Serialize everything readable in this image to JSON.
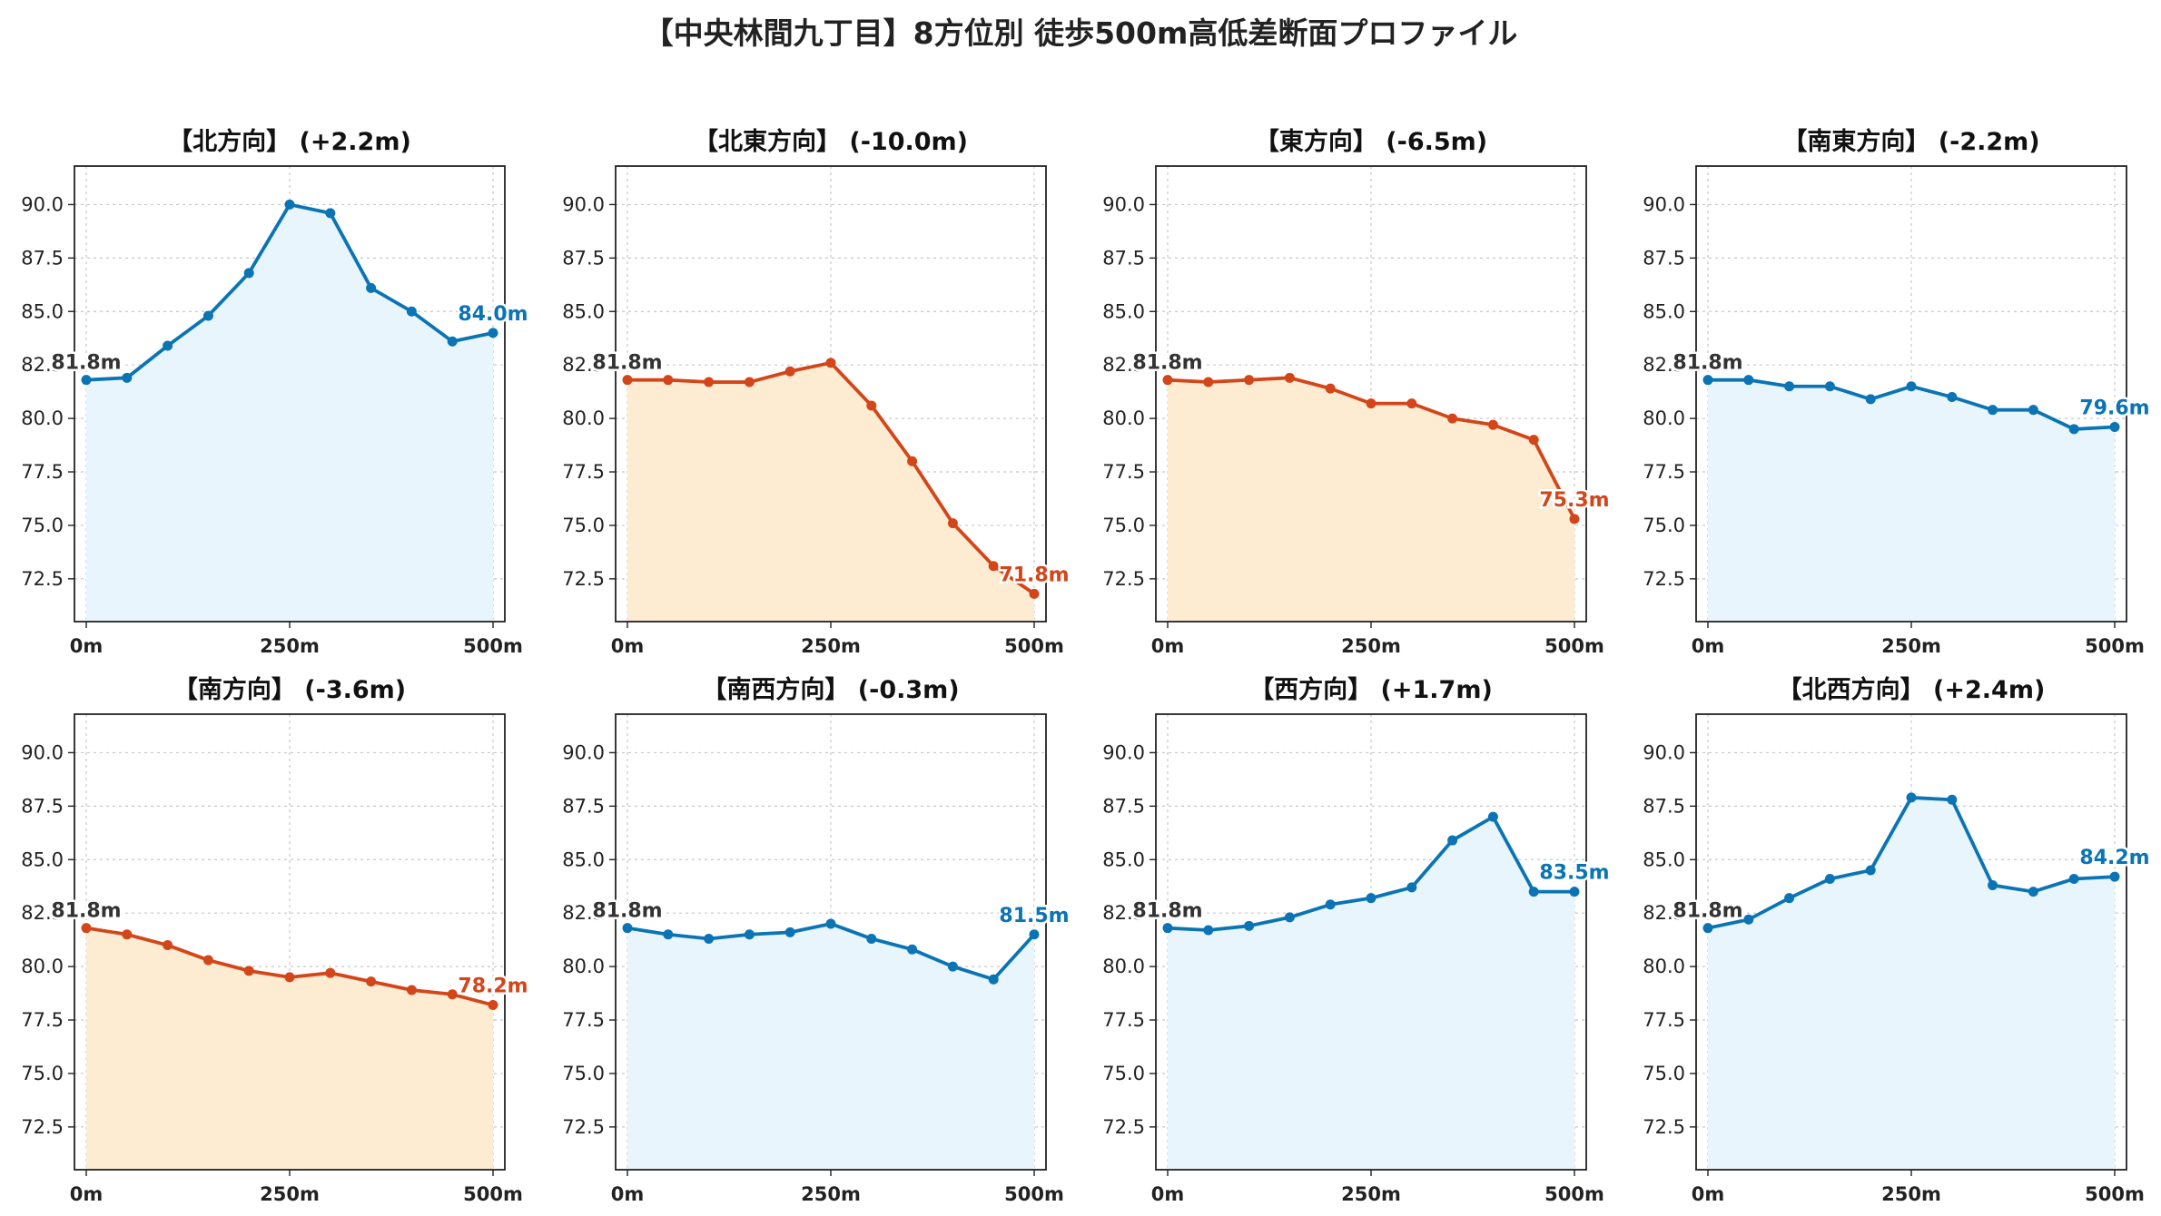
{
  "title": "【中央林間九丁目】8方位別 徒歩500m高低差断面プロファイル",
  "colors": {
    "up": "#0a74b4",
    "up_fill": "#e8f5fc",
    "down": "#d2461a",
    "down_fill": "#fdebd2",
    "start_label": "#333333"
  },
  "chart_data": [
    {
      "type": "area",
      "title": "【北方向】 (+2.2m)",
      "x": [
        0,
        50,
        100,
        150,
        200,
        250,
        300,
        350,
        400,
        450,
        500
      ],
      "values": [
        81.8,
        81.9,
        83.4,
        84.8,
        86.8,
        90.0,
        89.6,
        86.1,
        85.0,
        83.6,
        84.0
      ],
      "trend": "up",
      "start_label": "81.8m",
      "end_label": "84.0m",
      "ylim": [
        70.5,
        91.8
      ],
      "yticks": [
        "72.5",
        "75.0",
        "77.5",
        "80.0",
        "82.5",
        "85.0",
        "87.5",
        "90.0"
      ],
      "xticks": [
        "0m",
        "250m",
        "500m"
      ],
      "grid": true
    },
    {
      "type": "area",
      "title": "【北東方向】 (-10.0m)",
      "x": [
        0,
        50,
        100,
        150,
        200,
        250,
        300,
        350,
        400,
        450,
        500
      ],
      "values": [
        81.8,
        81.8,
        81.7,
        81.7,
        82.2,
        82.6,
        80.6,
        78.0,
        75.1,
        73.1,
        71.8
      ],
      "trend": "down",
      "start_label": "81.8m",
      "end_label": "71.8m",
      "ylim": [
        70.5,
        91.8
      ],
      "yticks": [
        "72.5",
        "75.0",
        "77.5",
        "80.0",
        "82.5",
        "85.0",
        "87.5",
        "90.0"
      ],
      "xticks": [
        "0m",
        "250m",
        "500m"
      ],
      "grid": true
    },
    {
      "type": "area",
      "title": "【東方向】 (-6.5m)",
      "x": [
        0,
        50,
        100,
        150,
        200,
        250,
        300,
        350,
        400,
        450,
        500
      ],
      "values": [
        81.8,
        81.7,
        81.8,
        81.9,
        81.4,
        80.7,
        80.7,
        80.0,
        79.7,
        79.0,
        75.3
      ],
      "trend": "down",
      "start_label": "81.8m",
      "end_label": "75.3m",
      "ylim": [
        70.5,
        91.8
      ],
      "yticks": [
        "72.5",
        "75.0",
        "77.5",
        "80.0",
        "82.5",
        "85.0",
        "87.5",
        "90.0"
      ],
      "xticks": [
        "0m",
        "250m",
        "500m"
      ],
      "grid": true
    },
    {
      "type": "area",
      "title": "【南東方向】 (-2.2m)",
      "x": [
        0,
        50,
        100,
        150,
        200,
        250,
        300,
        350,
        400,
        450,
        500
      ],
      "values": [
        81.8,
        81.8,
        81.5,
        81.5,
        80.9,
        81.5,
        81.0,
        80.4,
        80.4,
        79.5,
        79.6
      ],
      "trend": "up",
      "start_label": "81.8m",
      "end_label": "79.6m",
      "ylim": [
        70.5,
        91.8
      ],
      "yticks": [
        "72.5",
        "75.0",
        "77.5",
        "80.0",
        "82.5",
        "85.0",
        "87.5",
        "90.0"
      ],
      "xticks": [
        "0m",
        "250m",
        "500m"
      ],
      "grid": true
    },
    {
      "type": "area",
      "title": "【南方向】 (-3.6m)",
      "x": [
        0,
        50,
        100,
        150,
        200,
        250,
        300,
        350,
        400,
        450,
        500
      ],
      "values": [
        81.8,
        81.5,
        81.0,
        80.3,
        79.8,
        79.5,
        79.7,
        79.3,
        78.9,
        78.7,
        78.2
      ],
      "trend": "down",
      "start_label": "81.8m",
      "end_label": "78.2m",
      "ylim": [
        70.5,
        91.8
      ],
      "yticks": [
        "72.5",
        "75.0",
        "77.5",
        "80.0",
        "82.5",
        "85.0",
        "87.5",
        "90.0"
      ],
      "xticks": [
        "0m",
        "250m",
        "500m"
      ],
      "grid": true
    },
    {
      "type": "area",
      "title": "【南西方向】 (-0.3m)",
      "x": [
        0,
        50,
        100,
        150,
        200,
        250,
        300,
        350,
        400,
        450,
        500
      ],
      "values": [
        81.8,
        81.5,
        81.3,
        81.5,
        81.6,
        82.0,
        81.3,
        80.8,
        80.0,
        79.4,
        81.5
      ],
      "trend": "up",
      "start_label": "81.8m",
      "end_label": "81.5m",
      "ylim": [
        70.5,
        91.8
      ],
      "yticks": [
        "72.5",
        "75.0",
        "77.5",
        "80.0",
        "82.5",
        "85.0",
        "87.5",
        "90.0"
      ],
      "xticks": [
        "0m",
        "250m",
        "500m"
      ],
      "grid": true
    },
    {
      "type": "area",
      "title": "【西方向】 (+1.7m)",
      "x": [
        0,
        50,
        100,
        150,
        200,
        250,
        300,
        350,
        400,
        450,
        500
      ],
      "values": [
        81.8,
        81.7,
        81.9,
        82.3,
        82.9,
        83.2,
        83.7,
        85.9,
        87.0,
        83.5,
        83.5
      ],
      "trend": "up",
      "start_label": "81.8m",
      "end_label": "83.5m",
      "ylim": [
        70.5,
        91.8
      ],
      "yticks": [
        "72.5",
        "75.0",
        "77.5",
        "80.0",
        "82.5",
        "85.0",
        "87.5",
        "90.0"
      ],
      "xticks": [
        "0m",
        "250m",
        "500m"
      ],
      "grid": true
    },
    {
      "type": "area",
      "title": "【北西方向】 (+2.4m)",
      "x": [
        0,
        50,
        100,
        150,
        200,
        250,
        300,
        350,
        400,
        450,
        500
      ],
      "values": [
        81.8,
        82.2,
        83.2,
        84.1,
        84.5,
        87.9,
        87.8,
        83.8,
        83.5,
        84.1,
        84.2
      ],
      "trend": "up",
      "start_label": "81.8m",
      "end_label": "84.2m",
      "ylim": [
        70.5,
        91.8
      ],
      "yticks": [
        "72.5",
        "75.0",
        "77.5",
        "80.0",
        "82.5",
        "85.0",
        "87.5",
        "90.0"
      ],
      "xticks": [
        "0m",
        "250m",
        "500m"
      ],
      "grid": true
    }
  ]
}
